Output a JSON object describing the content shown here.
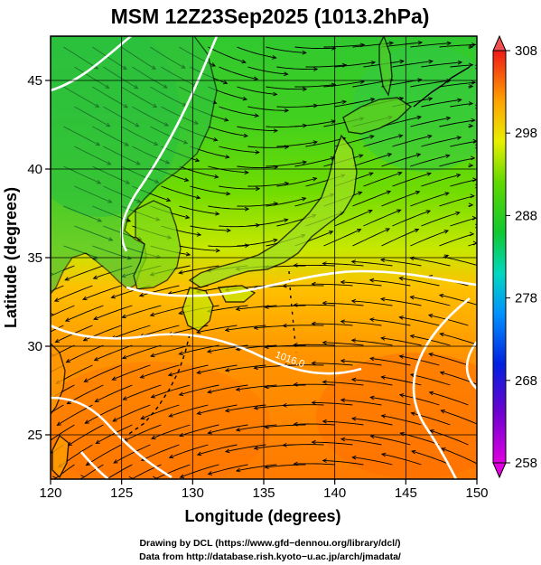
{
  "map": {
    "title": "MSM 12Z23Sep2025 (1013.2hPa)",
    "xlabel": "Longitude (degrees)",
    "ylabel": "Latitude  (degrees)",
    "lon_range": [
      120,
      150
    ],
    "lat_range": [
      22.5,
      47.5
    ],
    "lon_ticks": [
      "120",
      "125",
      "130",
      "135",
      "140",
      "145",
      "150"
    ],
    "lat_ticks": [
      "25",
      "30",
      "35",
      "40",
      "45"
    ],
    "grid": "on (every 5 degrees)",
    "contour_label": "1016.0",
    "layers": [
      "temperature-shading",
      "streamlines",
      "pressure-contours",
      "coastlines"
    ]
  },
  "colorbar": {
    "ticks": [
      "308",
      "298",
      "288",
      "278",
      "268",
      "258"
    ],
    "min": 258,
    "max": 308,
    "placement": "right"
  },
  "colors": {
    "warm": "#ff8a00",
    "mid": "#e8f000",
    "cool": "#22cc22",
    "contour": "#ffffff",
    "streamline": "#000000"
  },
  "credits": {
    "line1": "Drawing by DCL (https://www.gfd−dennou.org/library/dcl/)",
    "line2": "Data from http://database.rish.kyoto−u.ac.jp/arch/jmadata/"
  }
}
